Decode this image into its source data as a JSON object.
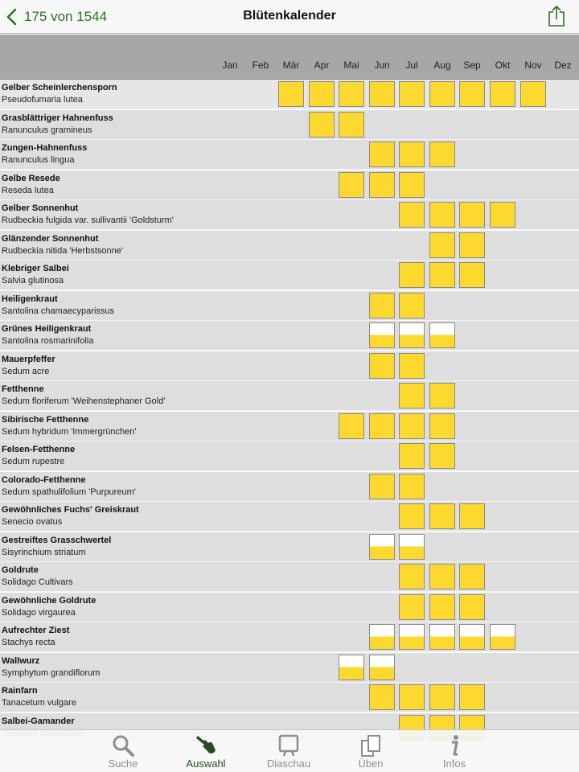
{
  "nav": {
    "back_label": "175 von 1544",
    "title": "Blütenkalender",
    "accent_color": "#2e6e26"
  },
  "months": [
    "Jan",
    "Feb",
    "Mär",
    "Apr",
    "Mai",
    "Jun",
    "Jul",
    "Aug",
    "Sep",
    "Okt",
    "Nov",
    "Dez"
  ],
  "bloom_color": "#fdd82e",
  "plants": [
    {
      "common": "Gelber Scheinlerchensporn",
      "latin": "Pseudofumaria lutea",
      "bloom": [
        "Mär",
        "Apr",
        "Mai",
        "Jun",
        "Jul",
        "Aug",
        "Sep",
        "Okt",
        "Nov"
      ],
      "partial": []
    },
    {
      "common": "Grasblättriger Hahnenfuss",
      "latin": "Ranunculus gramineus",
      "bloom": [
        "Apr",
        "Mai"
      ],
      "partial": []
    },
    {
      "common": "Zungen-Hahnenfuss",
      "latin": "Ranunculus lingua",
      "bloom": [
        "Jun",
        "Jul",
        "Aug"
      ],
      "partial": []
    },
    {
      "common": "Gelbe Resede",
      "latin": "Reseda lutea",
      "bloom": [
        "Mai",
        "Jun",
        "Jul"
      ],
      "partial": []
    },
    {
      "common": "Gelber Sonnenhut",
      "latin": "Rudbeckia fulgida  var. sullivantii 'Goldsturm'",
      "bloom": [
        "Jul",
        "Aug",
        "Sep",
        "Okt"
      ],
      "partial": []
    },
    {
      "common": "Glänzender Sonnenhut",
      "latin": "Rudbeckia nitida  'Herbstsonne'",
      "bloom": [
        "Aug",
        "Sep"
      ],
      "partial": []
    },
    {
      "common": "Klebriger Salbei",
      "latin": "Salvia glutinosa",
      "bloom": [
        "Jul",
        "Aug",
        "Sep"
      ],
      "partial": []
    },
    {
      "common": "Heiligenkraut",
      "latin": "Santolina chamaecyparissus",
      "bloom": [
        "Jun",
        "Jul"
      ],
      "partial": []
    },
    {
      "common": "Grünes Heiligenkraut",
      "latin": "Santolina rosmarinifolia",
      "bloom": [],
      "partial": [
        "Jun",
        "Jul",
        "Aug"
      ]
    },
    {
      "common": "Mauerpfeffer",
      "latin": "Sedum acre",
      "bloom": [
        "Jun",
        "Jul"
      ],
      "partial": []
    },
    {
      "common": "Fetthenne",
      "latin": "Sedum floriferum  'Weihenstephaner Gold'",
      "bloom": [
        "Jul",
        "Aug"
      ],
      "partial": []
    },
    {
      "common": "Sibirische Fetthenne",
      "latin": "Sedum hybridum  'Immergrünchen'",
      "bloom": [
        "Mai",
        "Jun",
        "Jul",
        "Aug"
      ],
      "partial": []
    },
    {
      "common": "Felsen-Fetthenne",
      "latin": "Sedum rupestre",
      "bloom": [
        "Jul",
        "Aug"
      ],
      "partial": []
    },
    {
      "common": "Colorado-Fetthenne",
      "latin": "Sedum spathulifolium  'Purpureum'",
      "bloom": [
        "Jun",
        "Jul"
      ],
      "partial": []
    },
    {
      "common": "Gewöhnliches Fuchs' Greiskraut",
      "latin": "Senecio ovatus",
      "bloom": [
        "Jul",
        "Aug",
        "Sep"
      ],
      "partial": []
    },
    {
      "common": "Gestreiftes Grasschwertel",
      "latin": "Sisyrinchium striatum",
      "bloom": [],
      "partial": [
        "Jun",
        "Jul"
      ]
    },
    {
      "common": "Goldrute",
      "latin": "Solidago Cultivars",
      "bloom": [
        "Jul",
        "Aug",
        "Sep"
      ],
      "partial": []
    },
    {
      "common": "Gewöhnliche Goldrute",
      "latin": "Solidago virgaurea",
      "bloom": [
        "Jul",
        "Aug",
        "Sep"
      ],
      "partial": []
    },
    {
      "common": "Aufrechter Ziest",
      "latin": "Stachys recta",
      "bloom": [],
      "partial": [
        "Jun",
        "Jul",
        "Aug",
        "Sep",
        "Okt"
      ]
    },
    {
      "common": "Wallwurz",
      "latin": "Symphytum grandiflorum",
      "bloom": [],
      "partial": [
        "Mai",
        "Jun"
      ]
    },
    {
      "common": "Rainfarn",
      "latin": "Tanacetum vulgare",
      "bloom": [
        "Jun",
        "Jul",
        "Aug",
        "Sep"
      ],
      "partial": []
    },
    {
      "common": "Salbei-Gamander",
      "latin": "Teucrium scorodonia",
      "bloom": [
        "Jul",
        "Aug",
        "Sep"
      ],
      "partial": []
    }
  ],
  "tabs": [
    {
      "label": "Suche",
      "icon": "magnifier-icon",
      "active": false
    },
    {
      "label": "Auswahl",
      "icon": "hand-pointer-icon",
      "active": true
    },
    {
      "label": "Diaschau",
      "icon": "slideshow-icon",
      "active": false
    },
    {
      "label": "Üben",
      "icon": "flashcards-icon",
      "active": false
    },
    {
      "label": "Infos",
      "icon": "info-icon",
      "active": false
    }
  ]
}
